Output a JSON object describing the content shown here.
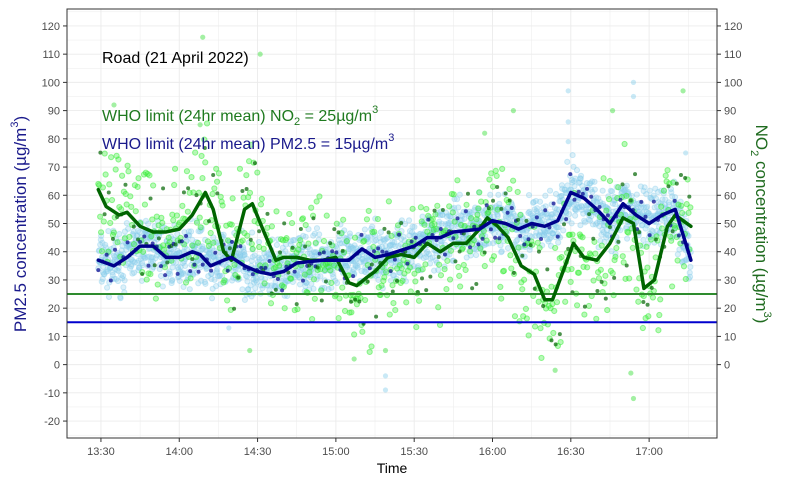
{
  "chart_data": {
    "type": "line",
    "xlabel": "Time",
    "ylabel_left": {
      "main": "PM2.5 concentration (µg/m",
      "sup": "3",
      "end": ")"
    },
    "ylabel_right": {
      "pre": "NO",
      "sub": "2",
      "main": " concentration (µg/m",
      "sup": "3",
      "end": ")"
    },
    "xlim": [
      "13:17",
      "17:26"
    ],
    "ylim": [
      -26,
      126
    ],
    "x_ticks": [
      "13:30",
      "14:00",
      "14:30",
      "15:00",
      "15:30",
      "16:00",
      "16:30",
      "17:00"
    ],
    "y_ticks_left": [
      -20,
      -10,
      0,
      10,
      20,
      30,
      40,
      50,
      60,
      70,
      80,
      90,
      100,
      110,
      120
    ],
    "y_ticks_right": [
      0,
      10,
      20,
      30,
      40,
      50,
      60,
      70,
      80,
      90,
      100,
      110,
      120
    ],
    "grid": true,
    "annotations": [
      {
        "text": "Road (21 April 2022)",
        "color": "#000000"
      },
      {
        "pre": "WHO limit (24hr mean) NO",
        "sub": "2",
        "main": " = 25µg/m",
        "sup": "3",
        "color": "#1f7a1f"
      },
      {
        "pre": "WHO limit (24hr mean)  PM2.5 = 15µg/m",
        "sup": "3",
        "color": "#1a1a8c"
      }
    ],
    "hlines": [
      {
        "series": "NO2 limit",
        "y": 25,
        "color": "#2e8b2e"
      },
      {
        "series": "PM2.5 limit",
        "y": 15,
        "color": "#0000cd"
      }
    ],
    "series": [
      {
        "id": "pm25_smooth",
        "color": "#00008b",
        "points": [
          [
            "13:29",
            37
          ],
          [
            "13:35",
            35
          ],
          [
            "13:40",
            38
          ],
          [
            "13:45",
            42
          ],
          [
            "13:50",
            42
          ],
          [
            "13:55",
            38
          ],
          [
            "14:00",
            38
          ],
          [
            "14:05",
            40
          ],
          [
            "14:08",
            39
          ],
          [
            "14:12",
            35
          ],
          [
            "14:17",
            37
          ],
          [
            "14:20",
            38
          ],
          [
            "14:25",
            35
          ],
          [
            "14:30",
            33
          ],
          [
            "14:35",
            32
          ],
          [
            "14:40",
            33
          ],
          [
            "14:45",
            36
          ],
          [
            "14:55",
            37
          ],
          [
            "15:00",
            37
          ],
          [
            "15:05",
            37
          ],
          [
            "15:10",
            41
          ],
          [
            "15:15",
            38
          ],
          [
            "15:20",
            39
          ],
          [
            "15:30",
            42
          ],
          [
            "15:35",
            45
          ],
          [
            "15:40",
            45
          ],
          [
            "15:45",
            47
          ],
          [
            "15:55",
            48
          ],
          [
            "16:00",
            51
          ],
          [
            "16:05",
            50
          ],
          [
            "16:10",
            48
          ],
          [
            "16:15",
            50
          ],
          [
            "16:20",
            49
          ],
          [
            "16:25",
            51
          ],
          [
            "16:30",
            61
          ],
          [
            "16:35",
            59
          ],
          [
            "16:40",
            55
          ],
          [
            "16:45",
            50
          ],
          [
            "16:50",
            57
          ],
          [
            "16:55",
            53
          ],
          [
            "17:00",
            50
          ],
          [
            "17:05",
            53
          ],
          [
            "17:10",
            55
          ],
          [
            "17:16",
            37
          ]
        ]
      },
      {
        "id": "no2_smooth",
        "color": "#006400",
        "points": [
          [
            "13:29",
            62
          ],
          [
            "13:32",
            56
          ],
          [
            "13:37",
            53
          ],
          [
            "13:40",
            54
          ],
          [
            "13:45",
            49
          ],
          [
            "13:50",
            47
          ],
          [
            "13:55",
            47
          ],
          [
            "14:00",
            48
          ],
          [
            "14:05",
            53
          ],
          [
            "14:10",
            61
          ],
          [
            "14:13",
            55
          ],
          [
            "14:17",
            40
          ],
          [
            "14:20",
            37
          ],
          [
            "14:25",
            55
          ],
          [
            "14:28",
            57
          ],
          [
            "14:32",
            48
          ],
          [
            "14:37",
            37
          ],
          [
            "14:40",
            38
          ],
          [
            "14:45",
            38
          ],
          [
            "14:50",
            37
          ],
          [
            "14:55",
            37
          ],
          [
            "15:00",
            38
          ],
          [
            "15:05",
            29
          ],
          [
            "15:08",
            28
          ],
          [
            "15:12",
            31
          ],
          [
            "15:15",
            33
          ],
          [
            "15:20",
            38
          ],
          [
            "15:25",
            39
          ],
          [
            "15:30",
            38
          ],
          [
            "15:35",
            43
          ],
          [
            "15:40",
            40
          ],
          [
            "15:45",
            43
          ],
          [
            "15:50",
            43
          ],
          [
            "15:55",
            48
          ],
          [
            "15:58",
            52
          ],
          [
            "16:02",
            49
          ],
          [
            "16:06",
            45
          ],
          [
            "16:11",
            35
          ],
          [
            "16:16",
            32
          ],
          [
            "16:20",
            23
          ],
          [
            "16:23",
            23
          ],
          [
            "16:27",
            33
          ],
          [
            "16:31",
            43
          ],
          [
            "16:35",
            38
          ],
          [
            "16:40",
            37
          ],
          [
            "16:45",
            43
          ],
          [
            "16:50",
            52
          ],
          [
            "16:54",
            50
          ],
          [
            "16:58",
            27
          ],
          [
            "17:02",
            30
          ],
          [
            "17:07",
            49
          ],
          [
            "17:10",
            53
          ],
          [
            "17:16",
            49
          ]
        ]
      }
    ],
    "scatter_outliers": {
      "no2": {
        "color": "#33dd33",
        "points": [
          [
            "14:09",
            116
          ],
          [
            "14:31",
            110
          ],
          [
            "14:08",
            85
          ],
          [
            "14:27",
            5
          ],
          [
            "15:07",
            2
          ],
          [
            "15:19",
            5
          ],
          [
            "16:24",
            -2
          ],
          [
            "16:53",
            -3
          ],
          [
            "16:54",
            -12
          ],
          [
            "17:13",
            97
          ],
          [
            "16:08",
            90
          ],
          [
            "16:46",
            90
          ],
          [
            "13:35",
            92
          ],
          [
            "15:57",
            82
          ]
        ]
      },
      "pm25": {
        "color": "#87ceeb",
        "points": [
          [
            "15:19",
            -4
          ],
          [
            "15:19",
            -9
          ],
          [
            "16:29",
            97
          ],
          [
            "16:29",
            86
          ],
          [
            "16:29",
            79
          ],
          [
            "16:54",
            100
          ],
          [
            "16:54",
            95
          ],
          [
            "14:19",
            13
          ],
          [
            "17:14",
            75
          ]
        ]
      }
    },
    "scatter_colors": {
      "pm25_raw": "#87ceeb",
      "pm25_dark": "#00008b",
      "no2_raw": "#33ee33",
      "no2_dark": "#006400"
    }
  }
}
